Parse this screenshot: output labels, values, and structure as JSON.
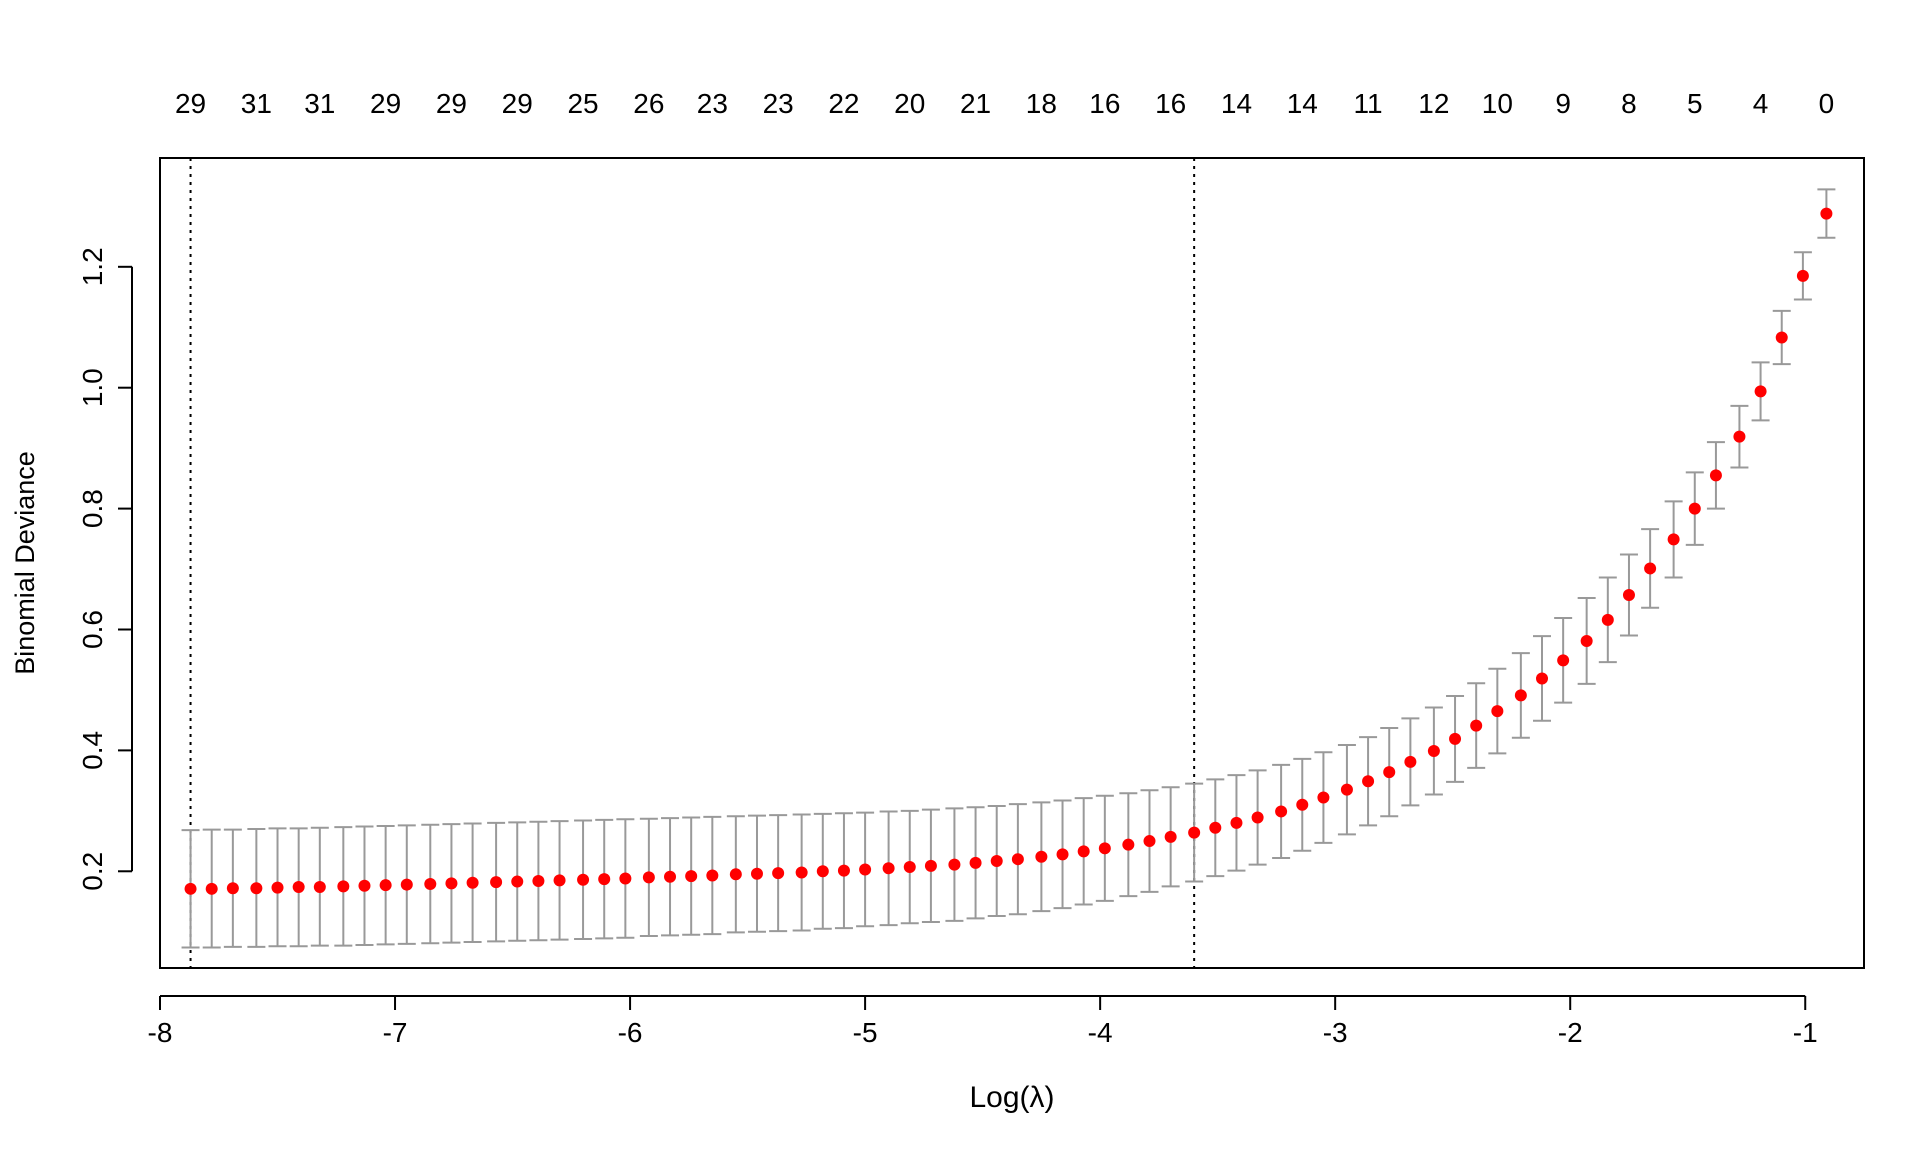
{
  "chart_data": {
    "type": "scatter",
    "xlabel": "Log(λ)",
    "ylabel": "Binomial Deviance",
    "xlim": [
      -8.0,
      -0.75
    ],
    "ylim": [
      0.04,
      1.38
    ],
    "x_ticks": [
      -8,
      -7,
      -6,
      -5,
      -4,
      -3,
      -2,
      -1
    ],
    "x_tick_labels": [
      "-8",
      "-7",
      "-6",
      "-5",
      "-4",
      "-3",
      "-2",
      "-1"
    ],
    "y_ticks": [
      0.2,
      0.4,
      0.6,
      0.8,
      1.0,
      1.2
    ],
    "y_tick_labels": [
      "0.2",
      "0.4",
      "0.6",
      "0.8",
      "1.0",
      "1.2"
    ],
    "top_axis": {
      "ticks": [
        -7.87,
        -7.59,
        -7.32,
        -7.04,
        -6.76,
        -6.48,
        -6.2,
        -5.92,
        -5.65,
        -5.37,
        -5.09,
        -4.81,
        -4.53,
        -4.25,
        -3.98,
        -3.7,
        -3.42,
        -3.14,
        -2.86,
        -2.58,
        -2.31,
        -2.03,
        -1.75,
        -1.47,
        -1.19,
        -0.91
      ],
      "labels": [
        "29",
        "31",
        "31",
        "29",
        "29",
        "29",
        "25",
        "26",
        "23",
        "23",
        "22",
        "20",
        "21",
        "18",
        "16",
        "16",
        "14",
        "14",
        "11",
        "12",
        "10",
        "9",
        "8",
        "5",
        "4",
        "0"
      ]
    },
    "vlines": [
      -7.87,
      -3.6
    ],
    "grid": false,
    "point_color": "#ff0000",
    "errorbar_color": "#999999",
    "series": [
      {
        "x": [
          -7.87,
          -7.78,
          -7.69,
          -7.59,
          -7.5,
          -7.41,
          -7.32,
          -7.22,
          -7.13,
          -7.04,
          -6.95,
          -6.85,
          -6.76,
          -6.67,
          -6.57,
          -6.48,
          -6.39,
          -6.3,
          -6.2,
          -6.11,
          -6.02,
          -5.92,
          -5.83,
          -5.74,
          -5.65,
          -5.55,
          -5.46,
          -5.37,
          -5.27,
          -5.18,
          -5.09,
          -5.0,
          -4.9,
          -4.81,
          -4.72,
          -4.62,
          -4.53,
          -4.44,
          -4.35,
          -4.25,
          -4.16,
          -4.07,
          -3.98,
          -3.88,
          -3.79,
          -3.7,
          -3.6,
          -3.51,
          -3.42,
          -3.33,
          -3.23,
          -3.14,
          -3.05,
          -2.95,
          -2.86,
          -2.77,
          -2.68,
          -2.58,
          -2.49,
          -2.4,
          -2.31,
          -2.21,
          -2.12,
          -2.03,
          -1.93,
          -1.84,
          -1.75,
          -1.66,
          -1.56,
          -1.47,
          -1.38,
          -1.28,
          -1.19,
          -1.1,
          -1.01,
          -0.91
        ],
        "y": [
          0.171,
          0.171,
          0.172,
          0.172,
          0.173,
          0.174,
          0.174,
          0.175,
          0.176,
          0.177,
          0.178,
          0.179,
          0.18,
          0.181,
          0.182,
          0.183,
          0.184,
          0.185,
          0.186,
          0.187,
          0.188,
          0.19,
          0.191,
          0.192,
          0.193,
          0.195,
          0.196,
          0.197,
          0.198,
          0.2,
          0.201,
          0.203,
          0.205,
          0.207,
          0.209,
          0.211,
          0.214,
          0.217,
          0.22,
          0.224,
          0.228,
          0.233,
          0.238,
          0.244,
          0.25,
          0.257,
          0.264,
          0.272,
          0.28,
          0.289,
          0.299,
          0.31,
          0.322,
          0.335,
          0.349,
          0.364,
          0.381,
          0.399,
          0.419,
          0.441,
          0.465,
          0.491,
          0.519,
          0.549,
          0.581,
          0.616,
          0.657,
          0.701,
          0.749,
          0.8,
          0.855,
          0.919,
          0.994,
          1.083,
          1.185,
          1.288
        ],
        "upper": [
          0.268,
          0.269,
          0.269,
          0.27,
          0.271,
          0.271,
          0.272,
          0.273,
          0.274,
          0.275,
          0.276,
          0.277,
          0.278,
          0.279,
          0.28,
          0.281,
          0.282,
          0.283,
          0.284,
          0.285,
          0.286,
          0.287,
          0.288,
          0.289,
          0.29,
          0.291,
          0.292,
          0.293,
          0.294,
          0.295,
          0.296,
          0.297,
          0.299,
          0.3,
          0.302,
          0.304,
          0.306,
          0.308,
          0.311,
          0.314,
          0.317,
          0.321,
          0.325,
          0.329,
          0.334,
          0.339,
          0.345,
          0.352,
          0.359,
          0.367,
          0.376,
          0.386,
          0.397,
          0.409,
          0.422,
          0.437,
          0.453,
          0.471,
          0.49,
          0.511,
          0.535,
          0.561,
          0.589,
          0.619,
          0.652,
          0.686,
          0.724,
          0.766,
          0.812,
          0.86,
          0.91,
          0.97,
          1.042,
          1.127,
          1.224,
          1.328
        ],
        "lower": [
          0.074,
          0.074,
          0.075,
          0.075,
          0.076,
          0.076,
          0.077,
          0.077,
          0.078,
          0.079,
          0.08,
          0.081,
          0.082,
          0.083,
          0.084,
          0.085,
          0.086,
          0.087,
          0.088,
          0.089,
          0.09,
          0.093,
          0.094,
          0.095,
          0.096,
          0.099,
          0.1,
          0.101,
          0.102,
          0.105,
          0.106,
          0.109,
          0.111,
          0.114,
          0.116,
          0.118,
          0.122,
          0.126,
          0.129,
          0.134,
          0.139,
          0.145,
          0.151,
          0.159,
          0.166,
          0.175,
          0.183,
          0.192,
          0.201,
          0.211,
          0.222,
          0.234,
          0.247,
          0.261,
          0.276,
          0.291,
          0.309,
          0.327,
          0.348,
          0.371,
          0.395,
          0.421,
          0.449,
          0.479,
          0.51,
          0.546,
          0.59,
          0.636,
          0.686,
          0.74,
          0.8,
          0.868,
          0.946,
          1.039,
          1.146,
          1.248
        ]
      }
    ]
  }
}
